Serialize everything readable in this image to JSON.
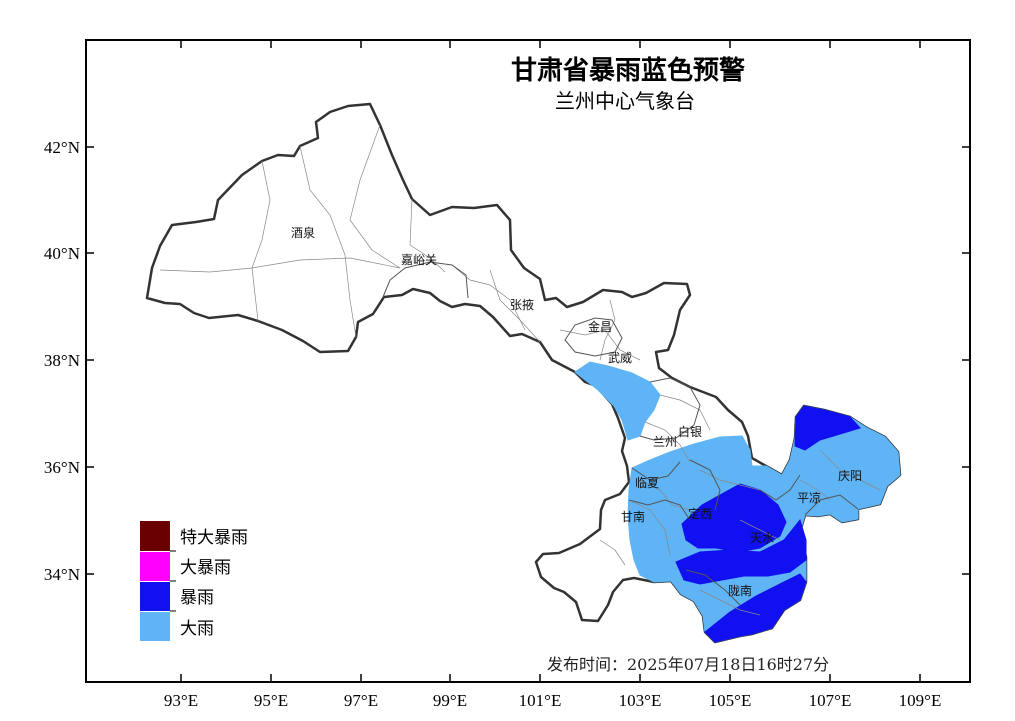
{
  "title": "甘肃省暴雨蓝色预警",
  "subtitle": "兰州中心气象台",
  "issue_time": "发布时间：2025年07月18日16时27分",
  "colors": {
    "特大暴雨": "#6b0000",
    "大暴雨": "#ff00ff",
    "暴雨": "#1010f0",
    "大雨": "#5fb4f5"
  },
  "legend": [
    {
      "label": "特大暴雨",
      "color": "#6b0000"
    },
    {
      "label": "大暴雨",
      "color": "#ff00ff"
    },
    {
      "label": "暴雨",
      "color": "#1010f0"
    },
    {
      "label": "大雨",
      "color": "#5fb4f5"
    }
  ],
  "axes": {
    "x_ticks": [
      "93°E",
      "95°E",
      "97°E",
      "99°E",
      "101°E",
      "103°E",
      "105°E",
      "107°E",
      "109°E"
    ],
    "y_ticks": [
      "42°N",
      "40°N",
      "38°N",
      "36°N",
      "34°N"
    ]
  },
  "cities": [
    {
      "name": "酒泉"
    },
    {
      "name": "嘉峪关"
    },
    {
      "name": "张掖"
    },
    {
      "name": "金昌"
    },
    {
      "name": "武威"
    },
    {
      "name": "白银"
    },
    {
      "name": "兰州"
    },
    {
      "name": "临夏"
    },
    {
      "name": "定西"
    },
    {
      "name": "甘南"
    },
    {
      "name": "天水"
    },
    {
      "name": "平凉"
    },
    {
      "name": "庆阳"
    },
    {
      "name": "陇南"
    }
  ]
}
